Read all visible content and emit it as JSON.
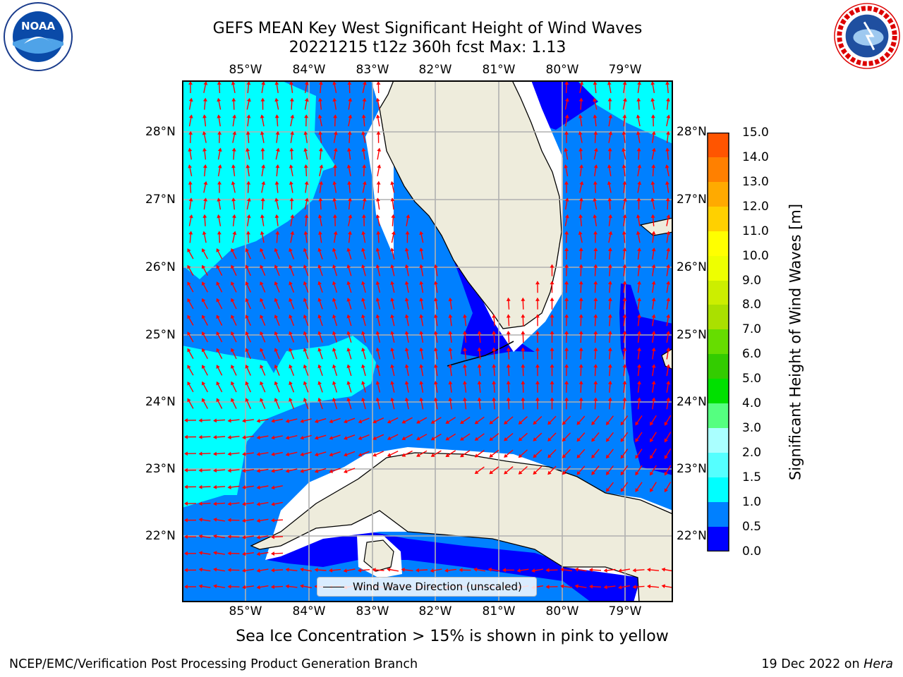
{
  "title": {
    "line1": "GEFS MEAN Key West Significant Height of Wind Waves",
    "line2": "20221215 t12z 360h fcst   Max: 1.13"
  },
  "map": {
    "lon_labels": [
      "85°W",
      "84°W",
      "83°W",
      "82°W",
      "81°W",
      "80°W",
      "79°W"
    ],
    "lat_labels": [
      "28°N",
      "27°N",
      "26°N",
      "25°N",
      "24°N",
      "23°N",
      "22°N"
    ],
    "legend": "Wind Wave Direction (unscaled)",
    "colors": {
      "land": "#eeecdc",
      "grid": "#b0b0b0",
      "arrow": "#ff0000",
      "coast": "#000000"
    }
  },
  "colorbar": {
    "label": "Significant Height of Wind Waves [m]",
    "ticks": [
      "15.0",
      "14.0",
      "13.0",
      "12.0",
      "11.0",
      "10.0",
      "9.0",
      "8.0",
      "7.0",
      "6.0",
      "5.0",
      "4.0",
      "3.0",
      "2.0",
      "1.5",
      "1.0",
      "0.5",
      "0.0"
    ],
    "colors_bottom_up": [
      "#0000ff",
      "#0080ff",
      "#00ffff",
      "#55ffff",
      "#aaffff",
      "#55ff80",
      "#00e000",
      "#33cc00",
      "#66dd00",
      "#aae000",
      "#ccee00",
      "#eeff00",
      "#ffff00",
      "#ffd000",
      "#ffaa00",
      "#ff8000",
      "#ff5500",
      "#ff2a00",
      "#ff0000"
    ]
  },
  "note": "Sea Ice Concentration > 15% is shown in pink to yellow",
  "footer": {
    "left": "NCEP/EMC/Verification Post Processing Product Generation Branch",
    "date": "19 Dec 2022 on ",
    "host": "Hera"
  },
  "logos": {
    "noaa": "NOAA",
    "nws_ring": "NATIONAL WEATHER SERVICE"
  }
}
